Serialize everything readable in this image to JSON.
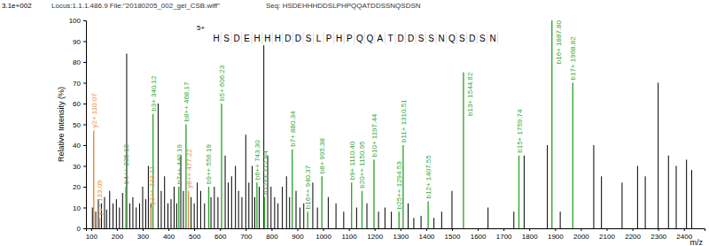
{
  "chart_data": {
    "type": "stem",
    "title": "Locus:1.1.1.486.9 File:\"20180205_002_gel_CSB.wiff\"",
    "subtitle": "Seq: HSDEHHHDDSLPHPQQATDDSSNQSDSN",
    "x_label": "m/z",
    "y_label": "Relative Intensity (%)",
    "annotations": [
      "3.1e+002",
      "5+"
    ],
    "sequence": "HSDEHHHDDSLPHPQQATDDSSNQSDSN",
    "xlim": [
      80,
      2480
    ],
    "xticks": [
      100,
      200,
      300,
      400,
      500,
      600,
      700,
      800,
      900,
      1000,
      1100,
      1200,
      1300,
      1400,
      1500,
      1600,
      1700,
      1800,
      1900,
      2000,
      2100,
      2200,
      2300,
      2400
    ],
    "ylim": [
      0,
      100
    ],
    "yticks": [
      0,
      10,
      20,
      30,
      40,
      50,
      60,
      70,
      80,
      90,
      100
    ],
    "grid": false,
    "series": [
      {
        "color": "#000000",
        "x": [
          105,
          118,
          128,
          140,
          152,
          160,
          172,
          185,
          198,
          210,
          222,
          238,
          250,
          262,
          275,
          288,
          300,
          312,
          322,
          332,
          360,
          372,
          385,
          398,
          410,
          422,
          432,
          448,
          458,
          488,
          500,
          512,
          525,
          540,
          565,
          578,
          592,
          620,
          632,
          645,
          660,
          672,
          685,
          700,
          712,
          725,
          735,
          752,
          770,
          785,
          798,
          812,
          825,
          842,
          858,
          870,
          895,
          910,
          925,
          960,
          978,
          1020,
          1050,
          1080,
          1130,
          1170,
          1215,
          1240,
          1265,
          1330,
          1352,
          1380,
          1430,
          1460,
          1500,
          1640,
          1740,
          1780,
          1870,
          1920,
          2050,
          2080,
          2160,
          2220,
          2250,
          2300,
          2340,
          2370,
          2410,
          2430
        ],
        "values": [
          10,
          8,
          14,
          12,
          15,
          9,
          18,
          12,
          14,
          10,
          17,
          84,
          12,
          15,
          10,
          12,
          20,
          14,
          30,
          12,
          60,
          18,
          25,
          12,
          14,
          20,
          12,
          35,
          18,
          15,
          12,
          22,
          18,
          12,
          15,
          20,
          15,
          35,
          22,
          25,
          30,
          18,
          15,
          45,
          22,
          30,
          15,
          20,
          88,
          35,
          20,
          15,
          12,
          20,
          25,
          15,
          18,
          10,
          12,
          22,
          10,
          15,
          12,
          8,
          10,
          12,
          8,
          10,
          8,
          12,
          5,
          6,
          5,
          8,
          18,
          10,
          8,
          35,
          40,
          8,
          40,
          25,
          22,
          30,
          25,
          70,
          35,
          30,
          33,
          28
        ]
      },
      {
        "color": "#f08a3c",
        "x": [
          110.07,
          133.09,
          333.11,
          477.22
        ],
        "values": [
          47,
          5,
          10,
          18
        ],
        "labels": [
          "y2+ 110.07",
          "y1+ 133.09",
          "y3++ 333.11",
          "y8++ 477.22"
        ]
      },
      {
        "color": "#33a833",
        "x": [
          235.12,
          340.12,
          440.19,
          468.17,
          556.19,
          606.23,
          743.3,
          772.84,
          880.34,
          940.37,
          995.38,
          1110.4,
          1150.95,
          1197.44,
          1294.53,
          1310.51,
          1407.55,
          1544.62,
          1759.74,
          1887.8,
          1968.82
        ],
        "values": [
          20,
          55,
          20,
          50,
          20,
          60,
          22,
          15,
          38,
          8,
          25,
          22,
          18,
          33,
          8,
          40,
          13,
          75,
          35,
          100,
          70
        ],
        "labels": [
          "b4++ 235.12",
          "b3+ 340.12",
          "b7++ 440.19",
          "b8++ 468.17",
          "b9++ 556.19",
          "b5+ 606.23",
          "b6++ 743.30",
          "b12++ 772.84",
          "b7+ 880.34",
          "b16++ 940.37",
          "b8+ 995.38",
          "b9+ 1110.40",
          "b20++ 1150.95",
          "b10+ 1197.44",
          "b25++ 1294.53",
          "b11+ 1310.51",
          "b12+ 1407.55",
          "b13+ 1544.62",
          "b15+ 1759.74",
          "b16+ 1887.80",
          "b17+ 1968.82"
        ]
      }
    ]
  }
}
